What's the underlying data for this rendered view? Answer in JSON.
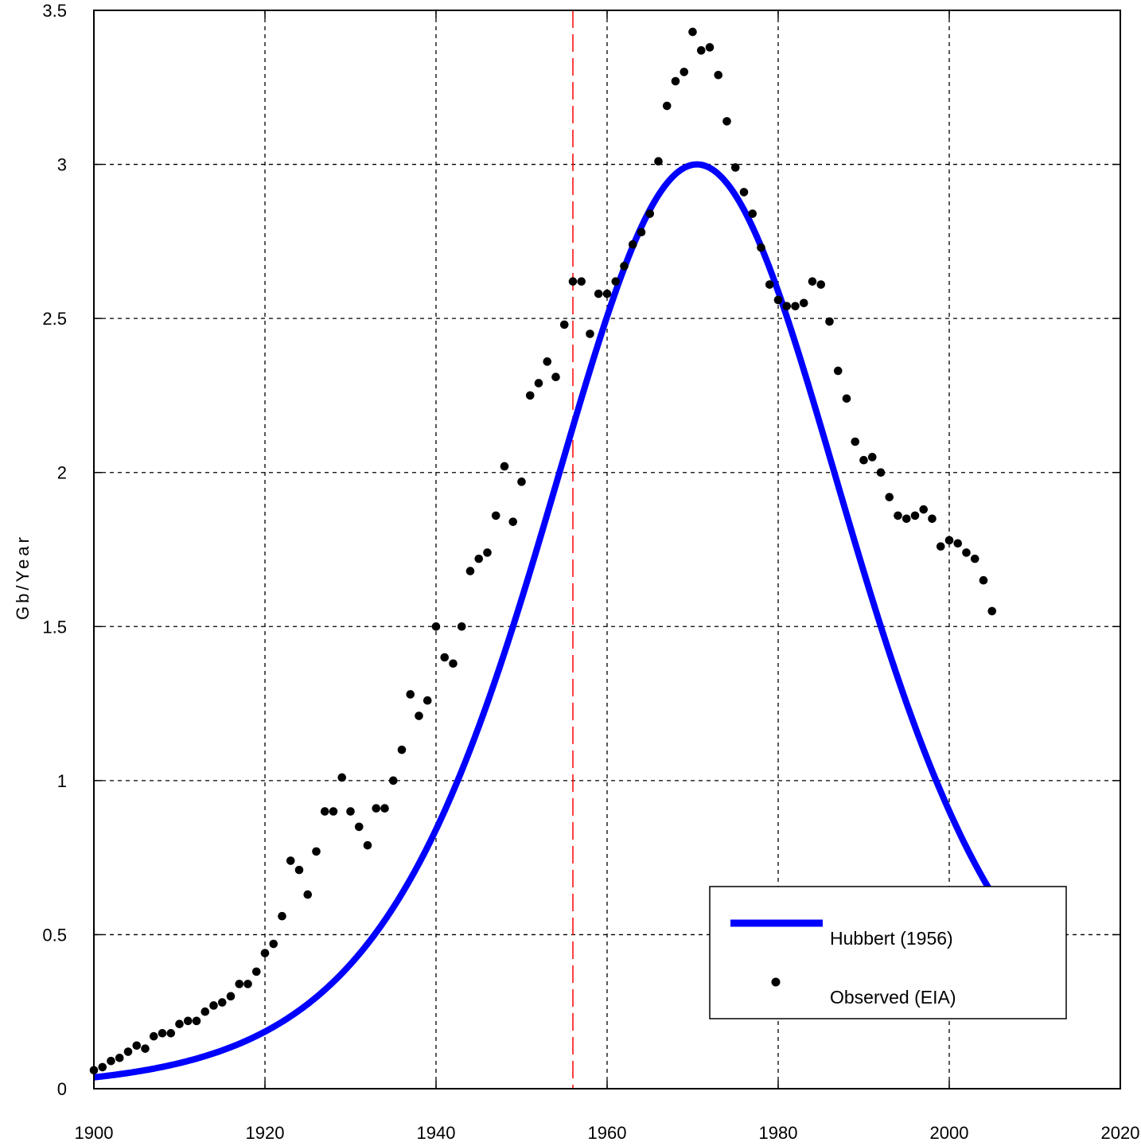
{
  "chart_data": {
    "type": "line",
    "title": "",
    "xlabel": "",
    "ylabel": "Gb/Year",
    "xlim": [
      1900,
      2020
    ],
    "ylim": [
      0,
      3.5
    ],
    "x_ticks": [
      1900,
      1920,
      1940,
      1960,
      1980,
      2000,
      2020
    ],
    "y_ticks": [
      0,
      0.5,
      1,
      1.5,
      2,
      2.5,
      3,
      3.5
    ],
    "x_tick_labels": [
      "1900",
      "1920",
      "1940",
      "1960",
      "1980",
      "2000",
      "2020"
    ],
    "y_tick_labels": [
      "0",
      "0.5",
      "1",
      "1.5",
      "2",
      "2.5",
      "3",
      "3.5"
    ],
    "grid": true,
    "legend_position": "bottom-right",
    "vertical_marker": {
      "x": 1956,
      "color": "#ff0000"
    },
    "series": [
      {
        "name": "Hubbert (1956)",
        "type": "line",
        "color": "#0000ff",
        "curve": {
          "peak": 3.0,
          "peak_year": 1970.5,
          "width": 12.2
        },
        "x_range": [
          1900,
          2006.5
        ]
      },
      {
        "name": "Observed (EIA)",
        "type": "scatter",
        "color": "#000000",
        "x": [
          1900,
          1901,
          1902,
          1903,
          1904,
          1905,
          1906,
          1907,
          1908,
          1909,
          1910,
          1911,
          1912,
          1913,
          1914,
          1915,
          1916,
          1917,
          1918,
          1919,
          1920,
          1921,
          1922,
          1923,
          1924,
          1925,
          1926,
          1927,
          1928,
          1929,
          1930,
          1931,
          1932,
          1933,
          1934,
          1935,
          1936,
          1937,
          1938,
          1939,
          1940,
          1941,
          1942,
          1943,
          1944,
          1945,
          1946,
          1947,
          1948,
          1949,
          1950,
          1951,
          1952,
          1953,
          1954,
          1955,
          1956,
          1957,
          1958,
          1959,
          1960,
          1961,
          1962,
          1963,
          1964,
          1965,
          1966,
          1967,
          1968,
          1969,
          1970,
          1971,
          1972,
          1973,
          1974,
          1975,
          1976,
          1977,
          1978,
          1979,
          1980,
          1981,
          1982,
          1983,
          1984,
          1985,
          1986,
          1987,
          1988,
          1989,
          1990,
          1991,
          1992,
          1993,
          1994,
          1995,
          1996,
          1997,
          1998,
          1999,
          2000,
          2001,
          2002,
          2003,
          2004,
          2005
        ],
        "y": [
          0.06,
          0.07,
          0.09,
          0.1,
          0.12,
          0.14,
          0.13,
          0.17,
          0.18,
          0.18,
          0.21,
          0.22,
          0.22,
          0.25,
          0.27,
          0.28,
          0.3,
          0.34,
          0.34,
          0.38,
          0.44,
          0.47,
          0.56,
          0.74,
          0.71,
          0.63,
          0.77,
          0.9,
          0.9,
          1.01,
          0.9,
          0.85,
          0.79,
          0.91,
          0.91,
          1.0,
          1.1,
          1.28,
          1.21,
          1.26,
          1.5,
          1.4,
          1.38,
          1.5,
          1.68,
          1.72,
          1.74,
          1.86,
          2.02,
          1.84,
          1.97,
          2.25,
          2.29,
          2.36,
          2.31,
          2.48,
          2.62,
          2.62,
          2.45,
          2.58,
          2.58,
          2.62,
          2.67,
          2.74,
          2.78,
          2.84,
          3.01,
          3.19,
          3.27,
          3.3,
          3.43,
          3.37,
          3.38,
          3.29,
          3.14,
          2.99,
          2.91,
          2.84,
          2.73,
          2.61,
          2.56,
          2.54,
          2.54,
          2.55,
          2.62,
          2.61,
          2.49,
          2.33,
          2.24,
          2.1,
          2.04,
          2.05,
          2.0,
          1.92,
          1.86,
          1.85,
          1.86,
          1.88,
          1.85,
          1.76,
          1.78,
          1.77,
          1.74,
          1.72,
          1.65,
          1.55
        ]
      }
    ]
  }
}
